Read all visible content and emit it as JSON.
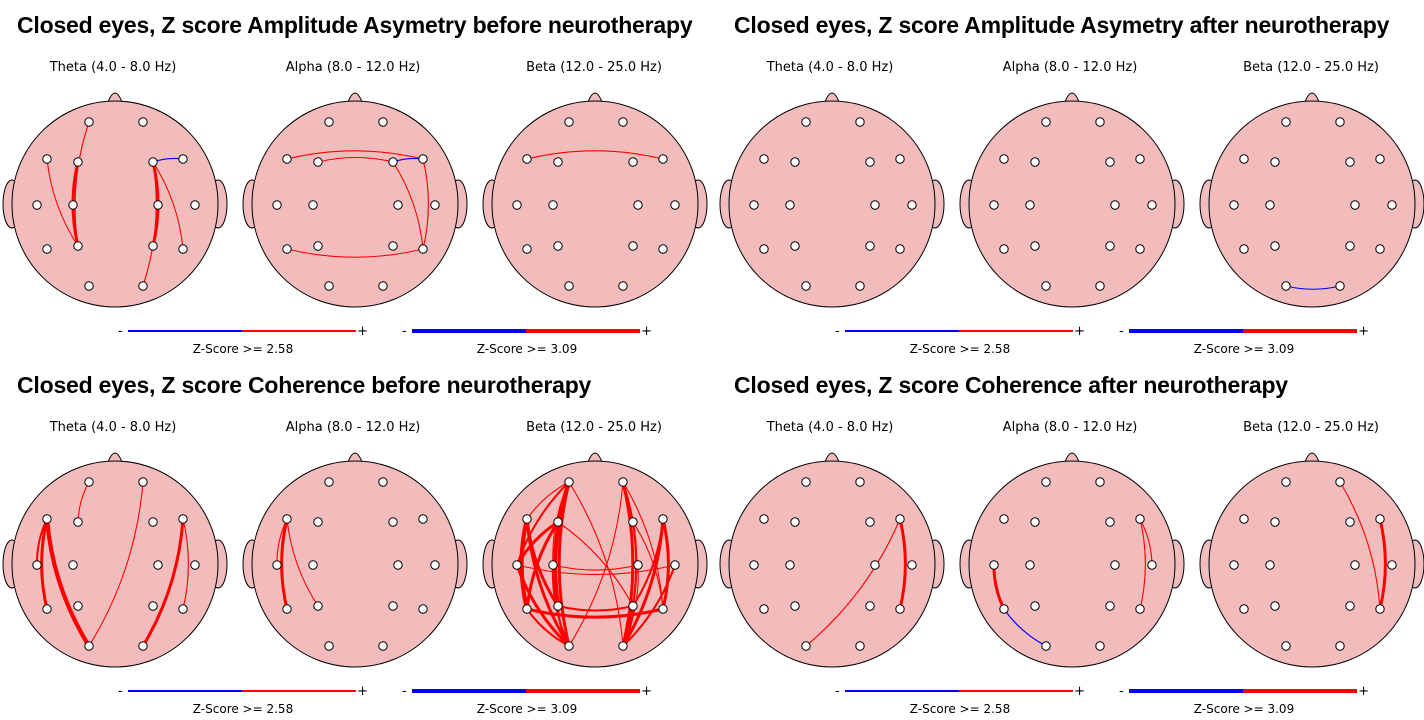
{
  "colors": {
    "head_fill": "#f2bcbc",
    "outline": "#000000",
    "electrode": "#ffffff",
    "positive": "#ff0000",
    "negative": "#0000ff"
  },
  "legend": {
    "minus": "-",
    "plus": "+"
  },
  "panels": [
    {
      "title": "Closed eyes, Z score Amplitude Asymetry before neurotherapy",
      "bands": [
        "Theta (4.0 - 8.0 Hz)",
        "Alpha (8.0 - 12.0 Hz)",
        "Beta (12.0 - 25.0 Hz)"
      ],
      "zscores": [
        "Z-Score >= 2.58",
        "Z-Score >= 3.09"
      ]
    },
    {
      "title": "Closed eyes, Z score Amplitude Asymetry after neurotherapy",
      "bands": [
        "Theta (4.0 - 8.0 Hz)",
        "Alpha (8.0 - 12.0 Hz)",
        "Beta (12.0 - 25.0 Hz)"
      ],
      "zscores": [
        "Z-Score >= 2.58",
        "Z-Score >= 3.09"
      ]
    },
    {
      "title": "Closed eyes, Z score Coherence before neurotherapy",
      "bands": [
        "Theta (4.0 - 8.0 Hz)",
        "Alpha (8.0 - 12.0 Hz)",
        "Beta (12.0 - 25.0 Hz)"
      ],
      "zscores": [
        "Z-Score >= 2.58",
        "Z-Score >= 3.09"
      ]
    },
    {
      "title": "Closed eyes, Z score Coherence after neurotherapy",
      "bands": [
        "Theta (4.0 - 8.0 Hz)",
        "Alpha (8.0 - 12.0 Hz)",
        "Beta (12.0 - 25.0 Hz)"
      ],
      "zscores": [
        "Z-Score >= 2.58",
        "Z-Score >= 3.09"
      ]
    }
  ],
  "connections": [
    [
      [
        [
          "F3",
          "P3",
          "pos",
          3
        ],
        [
          "F7",
          "P3",
          "pos",
          1
        ],
        [
          "Fp1",
          "P3",
          "pos",
          1
        ],
        [
          "F4",
          "P4",
          "pos",
          3
        ],
        [
          "F4",
          "T6",
          "pos",
          1
        ],
        [
          "F4",
          "O2",
          "pos",
          1
        ],
        [
          "F4",
          "F8",
          "neg",
          1
        ]
      ],
      [
        [
          "F7",
          "F8",
          "pos",
          1
        ],
        [
          "F3",
          "F4",
          "pos",
          1
        ],
        [
          "F4",
          "F8",
          "neg",
          1
        ],
        [
          "F4",
          "T6",
          "pos",
          1
        ],
        [
          "F8",
          "T6",
          "pos",
          1
        ],
        [
          "T5",
          "T6",
          "pos",
          1
        ]
      ],
      [
        [
          "F7",
          "F8",
          "pos",
          1
        ]
      ]
    ],
    [
      [],
      [],
      [
        [
          "O1",
          "O2",
          "neg",
          1
        ]
      ]
    ],
    [
      [
        [
          "F7",
          "T5",
          "pos",
          3
        ],
        [
          "F7",
          "O1",
          "pos",
          4
        ],
        [
          "F7",
          "T3",
          "pos",
          2
        ],
        [
          "Fp1",
          "F3",
          "pos",
          1
        ],
        [
          "Fp2",
          "O1",
          "pos",
          1
        ],
        [
          "F8",
          "O2",
          "pos",
          3
        ],
        [
          "F8",
          "T6",
          "pos",
          1
        ]
      ],
      [
        [
          "F7",
          "T5",
          "pos",
          3
        ],
        [
          "F7",
          "P3",
          "pos",
          1
        ],
        [
          "F7",
          "T3",
          "pos",
          1
        ]
      ],
      [
        [
          "F7",
          "T5",
          "pos",
          4
        ],
        [
          "F7",
          "P3",
          "pos",
          3
        ],
        [
          "F7",
          "O1",
          "pos",
          3
        ],
        [
          "F3",
          "T3",
          "pos",
          3
        ],
        [
          "F3",
          "T5",
          "pos",
          3
        ],
        [
          "Fp1",
          "P3",
          "pos",
          4
        ],
        [
          "Fp1",
          "O1",
          "pos",
          3
        ],
        [
          "Fp1",
          "T3",
          "pos",
          2
        ],
        [
          "Fp1",
          "C3",
          "pos",
          1
        ],
        [
          "Fp1",
          "F7",
          "pos",
          1
        ],
        [
          "T3",
          "O1",
          "pos",
          3
        ],
        [
          "C3",
          "O1",
          "pos",
          2
        ],
        [
          "P3",
          "O1",
          "pos",
          2
        ],
        [
          "T5",
          "O1",
          "pos",
          2
        ],
        [
          "Fp2",
          "O2",
          "pos",
          3
        ],
        [
          "Fp2",
          "P4",
          "pos",
          2
        ],
        [
          "Fp2",
          "T6",
          "pos",
          1
        ],
        [
          "F8",
          "T6",
          "pos",
          3
        ],
        [
          "F8",
          "O2",
          "pos",
          3
        ],
        [
          "F8",
          "P4",
          "pos",
          2
        ],
        [
          "F4",
          "T6",
          "pos",
          1
        ],
        [
          "F4",
          "O2",
          "pos",
          2
        ],
        [
          "T4",
          "O2",
          "pos",
          2
        ],
        [
          "C4",
          "O2",
          "pos",
          1
        ],
        [
          "P4",
          "O2",
          "pos",
          2
        ],
        [
          "T5",
          "T6",
          "pos",
          3
        ],
        [
          "P3",
          "P4",
          "pos",
          2
        ],
        [
          "T3",
          "T4",
          "pos",
          1
        ],
        [
          "C3",
          "C4",
          "pos",
          1
        ],
        [
          "Fp1",
          "O2",
          "pos",
          1
        ],
        [
          "Fp2",
          "O1",
          "pos",
          1
        ],
        [
          "F3",
          "P4",
          "pos",
          1
        ]
      ]
    ],
    [
      [
        [
          "F8",
          "T6",
          "pos",
          3
        ],
        [
          "F8",
          "O1",
          "pos",
          1
        ]
      ],
      [
        [
          "T3",
          "T5",
          "pos",
          3
        ],
        [
          "T5",
          "O1",
          "neg",
          1
        ],
        [
          "F8",
          "T6",
          "pos",
          1
        ],
        [
          "F8",
          "T4",
          "pos",
          1
        ]
      ],
      [
        [
          "Fp2",
          "T6",
          "pos",
          1
        ],
        [
          "F8",
          "T6",
          "pos",
          3
        ]
      ]
    ]
  ]
}
